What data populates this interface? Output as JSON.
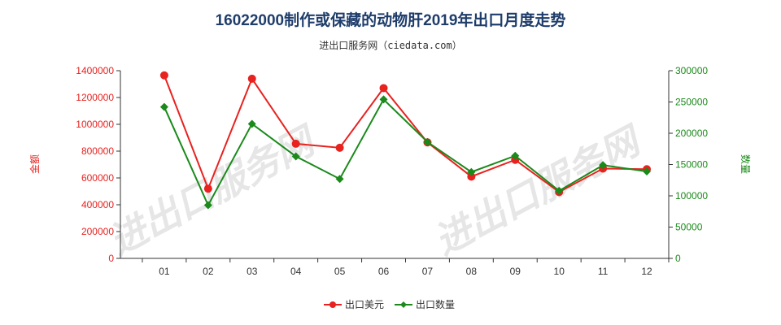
{
  "chart_data": {
    "type": "line",
    "title": "16022000制作或保藏的动物肝2019年出口月度走势",
    "subtitle": "进出口服务网（ciedata.com）",
    "watermark": "进出口服务网",
    "categories": [
      "01",
      "02",
      "03",
      "04",
      "05",
      "06",
      "07",
      "08",
      "09",
      "10",
      "11",
      "12"
    ],
    "y_left": {
      "label": "金额",
      "range": [
        0,
        1400000
      ],
      "ticks": [
        "0",
        "200000",
        "400000",
        "600000",
        "800000",
        "1000000",
        "1200000",
        "1400000"
      ],
      "color": "#e8221f"
    },
    "y_right": {
      "label": "数量",
      "range": [
        0,
        300000
      ],
      "ticks": [
        "0",
        "50000",
        "100000",
        "150000",
        "200000",
        "250000",
        "300000"
      ],
      "color": "#1a8a1a"
    },
    "series": [
      {
        "name": "出口美元",
        "axis": "left",
        "color": "#e8221f",
        "marker": "circle",
        "values": [
          1365000,
          520000,
          1340000,
          855000,
          825000,
          1270000,
          865000,
          610000,
          735000,
          495000,
          670000,
          665000
        ]
      },
      {
        "name": "出口数量",
        "axis": "right",
        "color": "#1a8a1a",
        "marker": "diamond",
        "values": [
          242000,
          85000,
          215000,
          163000,
          127000,
          254000,
          186000,
          138000,
          164000,
          108000,
          149000,
          139000
        ]
      }
    ],
    "grid": false,
    "legend": "bottom-center"
  }
}
